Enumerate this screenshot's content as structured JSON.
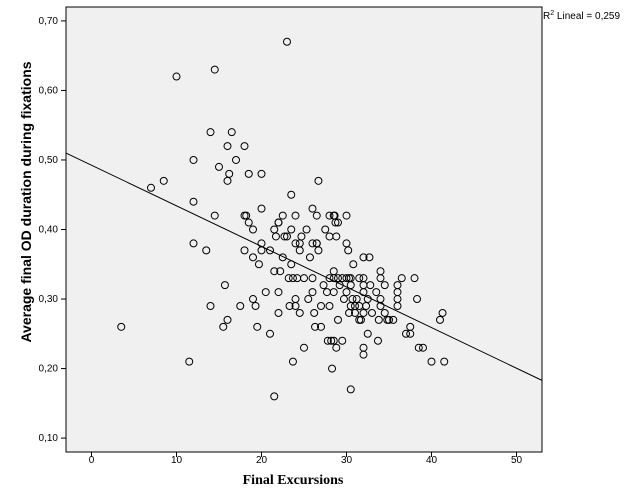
{
  "chart_data": {
    "type": "scatter",
    "title": "",
    "xlabel": "Final Excursions",
    "ylabel": "Average final OD duration during fixations",
    "xlim": [
      -3,
      53
    ],
    "ylim": [
      0.08,
      0.72
    ],
    "xticks": [
      "0",
      "10",
      "20",
      "30",
      "40",
      "50"
    ],
    "yticks": [
      "0,10",
      "0,20",
      "0,30",
      "0,40",
      "0,50",
      "0,60",
      "0,70"
    ],
    "grid": false,
    "fit_line": {
      "x": [
        -3,
        53
      ],
      "y": [
        0.51,
        0.183
      ],
      "label_prefix": "R",
      "label_sup": "2",
      "label_suffix": " Lineal = 0,259"
    },
    "colors": {
      "plot_background": "#f0f0f0",
      "marker_stroke": "#000000",
      "line": "#000000"
    },
    "points": [
      [
        3.5,
        0.26
      ],
      [
        7,
        0.46
      ],
      [
        8.5,
        0.47
      ],
      [
        10,
        0.62
      ],
      [
        11.5,
        0.21
      ],
      [
        12,
        0.5
      ],
      [
        12,
        0.44
      ],
      [
        12,
        0.38
      ],
      [
        13.5,
        0.37
      ],
      [
        14,
        0.54
      ],
      [
        14,
        0.29
      ],
      [
        14.5,
        0.63
      ],
      [
        14.5,
        0.42
      ],
      [
        15,
        0.49
      ],
      [
        15.5,
        0.26
      ],
      [
        15.7,
        0.32
      ],
      [
        16,
        0.52
      ],
      [
        16,
        0.47
      ],
      [
        16,
        0.27
      ],
      [
        16.2,
        0.48
      ],
      [
        16.5,
        0.54
      ],
      [
        17,
        0.5
      ],
      [
        17.5,
        0.29
      ],
      [
        18,
        0.52
      ],
      [
        18,
        0.42
      ],
      [
        18,
        0.37
      ],
      [
        18.2,
        0.42
      ],
      [
        18.5,
        0.48
      ],
      [
        18.5,
        0.41
      ],
      [
        19,
        0.4
      ],
      [
        19,
        0.36
      ],
      [
        19,
        0.3
      ],
      [
        19.3,
        0.29
      ],
      [
        19.5,
        0.26
      ],
      [
        19.7,
        0.35
      ],
      [
        20,
        0.48
      ],
      [
        20,
        0.43
      ],
      [
        20,
        0.38
      ],
      [
        20,
        0.37
      ],
      [
        20.5,
        0.31
      ],
      [
        21,
        0.37
      ],
      [
        21,
        0.25
      ],
      [
        21.5,
        0.4
      ],
      [
        21.5,
        0.34
      ],
      [
        21.5,
        0.16
      ],
      [
        21.7,
        0.39
      ],
      [
        22,
        0.41
      ],
      [
        22,
        0.41
      ],
      [
        22,
        0.31
      ],
      [
        22,
        0.28
      ],
      [
        22.2,
        0.34
      ],
      [
        22.5,
        0.42
      ],
      [
        22.5,
        0.36
      ],
      [
        22.7,
        0.39
      ],
      [
        23,
        0.67
      ],
      [
        23,
        0.39
      ],
      [
        23.2,
        0.33
      ],
      [
        23.3,
        0.29
      ],
      [
        23.5,
        0.45
      ],
      [
        23.5,
        0.4
      ],
      [
        23.5,
        0.35
      ],
      [
        23.7,
        0.33
      ],
      [
        23.7,
        0.21
      ],
      [
        24,
        0.42
      ],
      [
        24,
        0.38
      ],
      [
        24,
        0.3
      ],
      [
        24,
        0.29
      ],
      [
        24.2,
        0.33
      ],
      [
        24.5,
        0.38
      ],
      [
        24.5,
        0.37
      ],
      [
        24.5,
        0.28
      ],
      [
        24.7,
        0.39
      ],
      [
        25,
        0.33
      ],
      [
        25,
        0.23
      ],
      [
        25.3,
        0.4
      ],
      [
        25.5,
        0.3
      ],
      [
        25.7,
        0.36
      ],
      [
        26,
        0.43
      ],
      [
        26,
        0.38
      ],
      [
        26,
        0.33
      ],
      [
        26,
        0.31
      ],
      [
        26.2,
        0.28
      ],
      [
        26.3,
        0.26
      ],
      [
        26.5,
        0.42
      ],
      [
        26.5,
        0.38
      ],
      [
        26.5,
        0.38
      ],
      [
        26.7,
        0.47
      ],
      [
        26.7,
        0.37
      ],
      [
        27,
        0.29
      ],
      [
        27,
        0.26
      ],
      [
        27.3,
        0.32
      ],
      [
        27.5,
        0.4
      ],
      [
        27.7,
        0.31
      ],
      [
        27.8,
        0.24
      ],
      [
        28,
        0.42
      ],
      [
        28,
        0.39
      ],
      [
        28,
        0.33
      ],
      [
        28,
        0.29
      ],
      [
        28.2,
        0.24
      ],
      [
        28.3,
        0.2
      ],
      [
        28.5,
        0.42
      ],
      [
        28.5,
        0.34
      ],
      [
        28.5,
        0.33
      ],
      [
        28.5,
        0.31
      ],
      [
        28.5,
        0.24
      ],
      [
        28.6,
        0.42
      ],
      [
        28.7,
        0.41
      ],
      [
        28.8,
        0.39
      ],
      [
        28.8,
        0.23
      ],
      [
        29,
        0.41
      ],
      [
        29,
        0.33
      ],
      [
        29,
        0.27
      ],
      [
        29.2,
        0.32
      ],
      [
        29.5,
        0.33
      ],
      [
        29.5,
        0.24
      ],
      [
        29.7,
        0.3
      ],
      [
        30,
        0.42
      ],
      [
        30,
        0.38
      ],
      [
        30,
        0.33
      ],
      [
        30,
        0.31
      ],
      [
        30.2,
        0.37
      ],
      [
        30.3,
        0.33
      ],
      [
        30.3,
        0.28
      ],
      [
        30.5,
        0.33
      ],
      [
        30.5,
        0.32
      ],
      [
        30.5,
        0.29
      ],
      [
        30.5,
        0.17
      ],
      [
        30.7,
        0.3
      ],
      [
        30.8,
        0.35
      ],
      [
        31,
        0.29
      ],
      [
        31,
        0.28
      ],
      [
        31.2,
        0.3
      ],
      [
        31.5,
        0.33
      ],
      [
        31.5,
        0.29
      ],
      [
        31.5,
        0.27
      ],
      [
        31.7,
        0.27
      ],
      [
        32,
        0.36
      ],
      [
        32,
        0.33
      ],
      [
        32,
        0.32
      ],
      [
        32,
        0.31
      ],
      [
        32,
        0.28
      ],
      [
        32,
        0.23
      ],
      [
        32,
        0.22
      ],
      [
        32.3,
        0.29
      ],
      [
        32.5,
        0.3
      ],
      [
        32.5,
        0.25
      ],
      [
        32.7,
        0.36
      ],
      [
        32.8,
        0.32
      ],
      [
        33,
        0.28
      ],
      [
        33.5,
        0.31
      ],
      [
        33.7,
        0.24
      ],
      [
        33.8,
        0.27
      ],
      [
        34,
        0.34
      ],
      [
        34,
        0.33
      ],
      [
        34,
        0.3
      ],
      [
        34,
        0.29
      ],
      [
        34.5,
        0.32
      ],
      [
        34.5,
        0.28
      ],
      [
        34.8,
        0.27
      ],
      [
        35,
        0.27
      ],
      [
        35.5,
        0.27
      ],
      [
        36,
        0.32
      ],
      [
        36,
        0.31
      ],
      [
        36,
        0.3
      ],
      [
        36,
        0.29
      ],
      [
        36.5,
        0.33
      ],
      [
        37,
        0.25
      ],
      [
        37.5,
        0.26
      ],
      [
        37.5,
        0.25
      ],
      [
        38,
        0.33
      ],
      [
        38.3,
        0.3
      ],
      [
        38.5,
        0.23
      ],
      [
        39,
        0.23
      ],
      [
        40,
        0.21
      ],
      [
        41,
        0.27
      ],
      [
        41.3,
        0.28
      ],
      [
        41.5,
        0.21
      ]
    ]
  }
}
